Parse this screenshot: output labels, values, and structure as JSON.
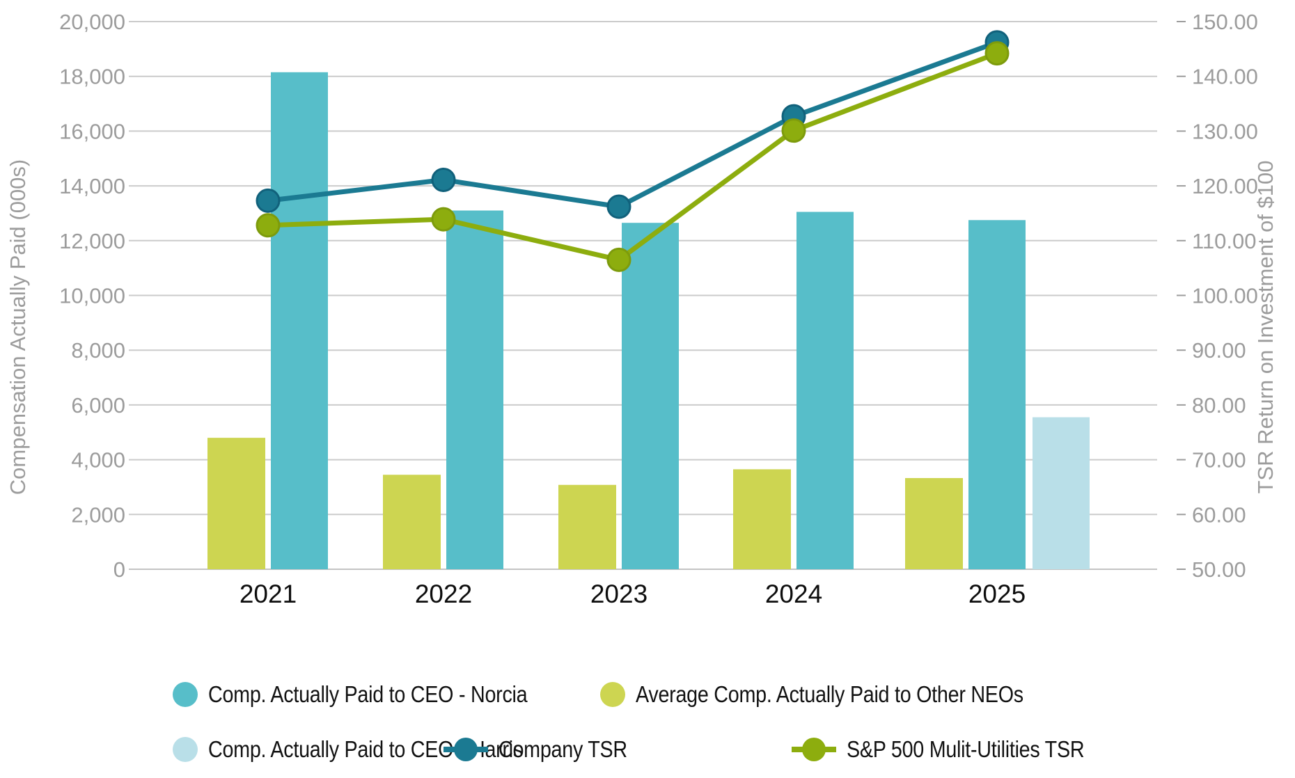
{
  "chart_data": {
    "type": "combo-bar-line",
    "title": "",
    "categories": [
      "2021",
      "2022",
      "2023",
      "2024",
      "2025"
    ],
    "left_axis": {
      "title": "Compensation Actually Paid (000s)",
      "range": [
        0,
        20000
      ],
      "ticks": [
        {
          "v": 0,
          "label": "0"
        },
        {
          "v": 2000,
          "label": "2,000"
        },
        {
          "v": 4000,
          "label": "4,000"
        },
        {
          "v": 6000,
          "label": "6,000"
        },
        {
          "v": 8000,
          "label": "8,000"
        },
        {
          "v": 10000,
          "label": "10,000"
        },
        {
          "v": 12000,
          "label": "12,000"
        },
        {
          "v": 14000,
          "label": "14,000"
        },
        {
          "v": 16000,
          "label": "16,000"
        },
        {
          "v": 18000,
          "label": "18,000"
        },
        {
          "v": 20000,
          "label": "20,000"
        }
      ]
    },
    "right_axis": {
      "title": "TSR Return on Investment of $100",
      "range": [
        50,
        150
      ],
      "ticks": [
        {
          "v": 50,
          "label": "50.00"
        },
        {
          "v": 60,
          "label": "60.00"
        },
        {
          "v": 70,
          "label": "70.00"
        },
        {
          "v": 80,
          "label": "80.00"
        },
        {
          "v": 90,
          "label": "90.00"
        },
        {
          "v": 100,
          "label": "100.00"
        },
        {
          "v": 110,
          "label": "110.00"
        },
        {
          "v": 120,
          "label": "120.00"
        },
        {
          "v": 130,
          "label": "130.00"
        },
        {
          "v": 140,
          "label": "140.00"
        },
        {
          "v": 150,
          "label": "150.00"
        }
      ]
    },
    "bar_series": [
      {
        "name": "Comp. Actually Paid to CEO - Norcia",
        "color": "#57bec9",
        "values": [
          18150,
          13100,
          12650,
          13050,
          12750
        ]
      },
      {
        "name": "Average Comp. Actually Paid to Other NEOs",
        "color": "#cdd551",
        "values": [
          4800,
          3450,
          3080,
          3650,
          3330
        ]
      },
      {
        "name": "Comp. Actually Paid to CEO - Harris",
        "color": "#b9dfe8",
        "values": [
          null,
          null,
          null,
          null,
          5550
        ]
      }
    ],
    "line_series": [
      {
        "name": "Company TSR",
        "color": "#1b7a92",
        "dot_stroke": "#11617b",
        "values": [
          117.3,
          121.1,
          116.2,
          132.7,
          146.2
        ]
      },
      {
        "name": "S&P 500 Mulit-Utilities TSR",
        "color": "#8dad0e",
        "dot_stroke": "#7d9b0c",
        "values": [
          112.8,
          113.9,
          106.5,
          130.1,
          144.2
        ]
      }
    ],
    "gridlines": true,
    "legend_position": "bottom"
  },
  "colors": {
    "grid": "#cbcbcb",
    "baseline": "#c3c3c3",
    "axis_text": "#9c9c9c",
    "year_text": "#0d0d0d",
    "legend_text": "#121212",
    "background": "#ffffff"
  }
}
